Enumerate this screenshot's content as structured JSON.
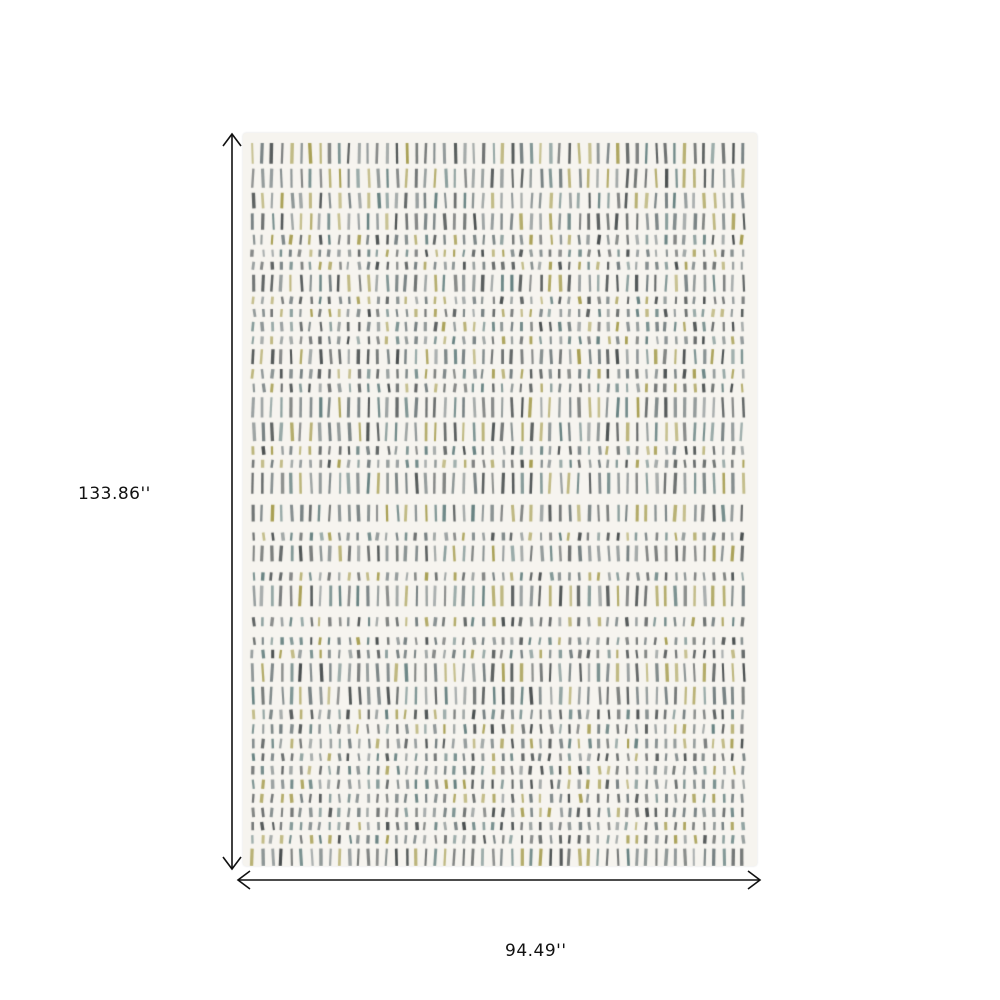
{
  "product": {
    "height_label": "133.86''",
    "width_label": "94.49''",
    "rug_colors": {
      "base": "#f6f4ef",
      "charcoal": "#3f4546",
      "slate": "#6f7a7c",
      "olive": "#a39a4a",
      "teal": "#5d7a7a"
    }
  }
}
